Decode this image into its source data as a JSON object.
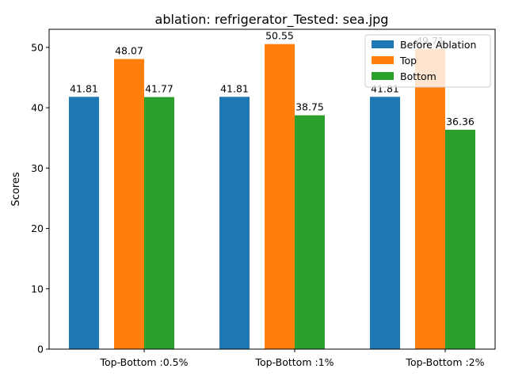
{
  "chart_data": {
    "type": "bar",
    "title": "ablation: refrigerator_Tested: sea.jpg",
    "xlabel": "",
    "ylabel": "Scores",
    "categories": [
      "Top-Bottom :0.5%",
      "Top-Bottom :1%",
      "Top-Bottom :2%"
    ],
    "ylim": [
      0,
      53
    ],
    "yticks": [
      0,
      10,
      20,
      30,
      40,
      50
    ],
    "grid": false,
    "legend_position": "top-right",
    "series": [
      {
        "name": "Before Ablation",
        "color": "#1f77b4",
        "values": [
          41.81,
          41.81,
          41.81
        ],
        "labels": [
          "41.81",
          "41.81",
          "41.81"
        ]
      },
      {
        "name": "Top",
        "color": "#ff7f0e",
        "values": [
          48.07,
          50.55,
          49.71
        ],
        "labels": [
          "48.07",
          "50.55",
          "49.71"
        ]
      },
      {
        "name": "Bottom",
        "color": "#2ca02c",
        "values": [
          41.77,
          38.75,
          36.36
        ],
        "labels": [
          "41.77",
          "38.75",
          "36.36"
        ]
      }
    ]
  }
}
